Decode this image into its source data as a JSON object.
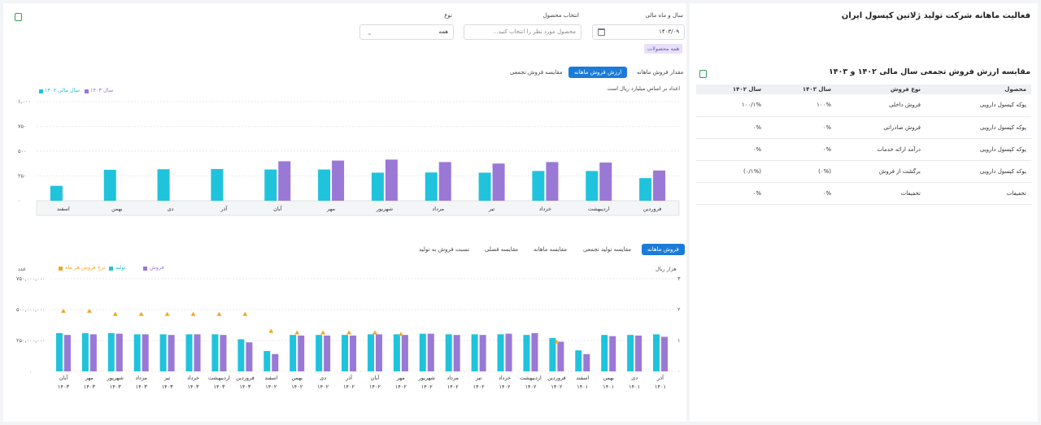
{
  "header": {
    "page_title": "فعالیت ماهانه شرکت تولید ژلاتین کپسول ایران",
    "fiscal_label": "سال و ماه مالی",
    "fiscal_value": "۱۴۰۳/۰۹",
    "product_label": "انتخاب محصول",
    "product_placeholder": "محصول مورد نظر را انتخاب کنید...",
    "type_label": "نوع",
    "type_value": "همه",
    "chip_all_products": "همه محصولات"
  },
  "comparison": {
    "title": "مقایسه ارزش فروش تجمعی سال مالی ۱۴۰۲ و ۱۴۰۳",
    "columns": [
      "محصول",
      "نوع فروش",
      "سال ۱۴۰۳",
      "سال ۱۴۰۲"
    ],
    "rows": [
      [
        "پوکه کپسول دارویی",
        "فروش داخلی",
        "۱۰۰%",
        "۱۰۰/۱%"
      ],
      [
        "پوکه کپسول دارویی",
        "فروش صادراتی",
        "۰%",
        "۰%"
      ],
      [
        "پوکه کپسول دارویی",
        "درآمد ارائه خدمات",
        "۰%",
        "۰%"
      ],
      [
        "پوکه کپسول دارویی",
        "برگشت از فروش",
        "(۰%)",
        "(۰/۱%)"
      ],
      [
        "تخفیفات",
        "تخفیفات",
        "۰%",
        "۰%"
      ]
    ]
  },
  "chart1": {
    "tabs": [
      "مقدار فروش ماهانه",
      "ارزش فروش ماهانه",
      "مقایسه فروش تجمعی"
    ],
    "active_tab": 1,
    "note": "اعداد بر اساس میلیارد ریال است",
    "legend": [
      {
        "label": "سال مالی ۱۴۰۲",
        "color": "#20c3dc"
      },
      {
        "label": "سال ۱۴۰۳",
        "color": "#9a78d6"
      }
    ]
  },
  "chart1_data": {
    "type": "bar",
    "categories": [
      "فروردین",
      "اردیبهشت",
      "خرداد",
      "تیر",
      "مرداد",
      "شهریور",
      "مهر",
      "آبان",
      "آذر",
      "دی",
      "بهمن",
      "اسفند"
    ],
    "series": [
      {
        "name": "سال مالی ۱۴۰۲",
        "color": "#20c3dc",
        "values": [
          228,
          300,
          300,
          283,
          285,
          283,
          315,
          315,
          320,
          318,
          312,
          150
        ]
      },
      {
        "name": "سال ۱۴۰۳",
        "color": "#9a78d6",
        "values": [
          305,
          385,
          390,
          375,
          390,
          415,
          405,
          398,
          null,
          null,
          null,
          null
        ]
      }
    ],
    "ylim": [
      0,
      1000
    ],
    "yticks": [
      "۰",
      "۲۵۰",
      "۵۰۰",
      "۷۵۰",
      "۱,۰۰۰"
    ]
  },
  "chart2": {
    "tabs": [
      "فروش ماهانه",
      "مقایسه تولید تجمعی",
      "مقایسه ماهانه",
      "مقایسه فصلی",
      "نسبت فروش به تولید"
    ],
    "active_tab": 0,
    "left_axis_label": "عدد",
    "right_axis_label": "هزار ریال",
    "legend": [
      {
        "label": "نرخ فروش هر ماه",
        "color": "#f5a623"
      },
      {
        "label": "تولید",
        "color": "#20c3dc"
      },
      {
        "label": "فروش",
        "color": "#9a78d6"
      }
    ]
  },
  "chart2_data": {
    "type": "bar",
    "categories": [
      [
        "آذر",
        "۱۴۰۱"
      ],
      [
        "دی",
        "۱۴۰۱"
      ],
      [
        "بهمن",
        "۱۴۰۱"
      ],
      [
        "اسفند",
        "۱۴۰۱"
      ],
      [
        "فروردین",
        "۱۴۰۲"
      ],
      [
        "اردیبهشت",
        "۱۴۰۲"
      ],
      [
        "خرداد",
        "۱۴۰۲"
      ],
      [
        "تیر",
        "۱۴۰۲"
      ],
      [
        "مرداد",
        "۱۴۰۲"
      ],
      [
        "شهریور",
        "۱۴۰۲"
      ],
      [
        "مهر",
        "۱۴۰۲"
      ],
      [
        "آبان",
        "۱۴۰۲"
      ],
      [
        "آذر",
        "۱۴۰۲"
      ],
      [
        "دی",
        "۱۴۰۲"
      ],
      [
        "بهمن",
        "۱۴۰۲"
      ],
      [
        "اسفند",
        "۱۴۰۲"
      ],
      [
        "فروردین",
        "۱۴۰۳"
      ],
      [
        "اردیبهشت",
        "۱۴۰۳"
      ],
      [
        "خرداد",
        "۱۴۰۳"
      ],
      [
        "تیر",
        "۱۴۰۳"
      ],
      [
        "مرداد",
        "۱۴۰۳"
      ],
      [
        "شهریور",
        "۱۴۰۳"
      ],
      [
        "مهر",
        "۱۴۰۳"
      ],
      [
        "آبان",
        "۱۴۰۳"
      ]
    ],
    "series": [
      {
        "name": "تولید",
        "color": "#20c3dc",
        "values": [
          300,
          295,
          295,
          170,
          270,
          295,
          300,
          300,
          300,
          305,
          300,
          300,
          295,
          295,
          295,
          165,
          260,
          300,
          300,
          300,
          300,
          310,
          310,
          310
        ]
      },
      {
        "name": "فروش",
        "color": "#9a78d6",
        "values": [
          280,
          290,
          285,
          140,
          240,
          310,
          305,
          295,
          295,
          305,
          295,
          300,
          290,
          290,
          290,
          140,
          235,
          295,
          300,
          295,
          300,
          305,
          300,
          295
        ]
      },
      {
        "name": "نرخ فروش هر ماه",
        "color": "#f5a623",
        "axis": "right",
        "values": [
          null,
          null,
          null,
          null,
          0.95,
          null,
          null,
          null,
          null,
          null,
          1.2,
          1.25,
          1.25,
          1.25,
          1.25,
          1.3,
          1.85,
          1.85,
          1.85,
          1.85,
          1.85,
          1.85,
          1.95,
          1.95
        ]
      }
    ],
    "ylim": [
      0,
      750000000
    ],
    "yticks": [
      "۰",
      "۲۵۰,۰۰۰,۰۰۰",
      "۵۰۰,۰۰۰,۰۰۰",
      "۷۵۰,۰۰۰,۰۰۰"
    ],
    "y2lim": [
      0,
      3
    ],
    "y2ticks": [
      "۰",
      "۱",
      "۲",
      "۳"
    ]
  }
}
